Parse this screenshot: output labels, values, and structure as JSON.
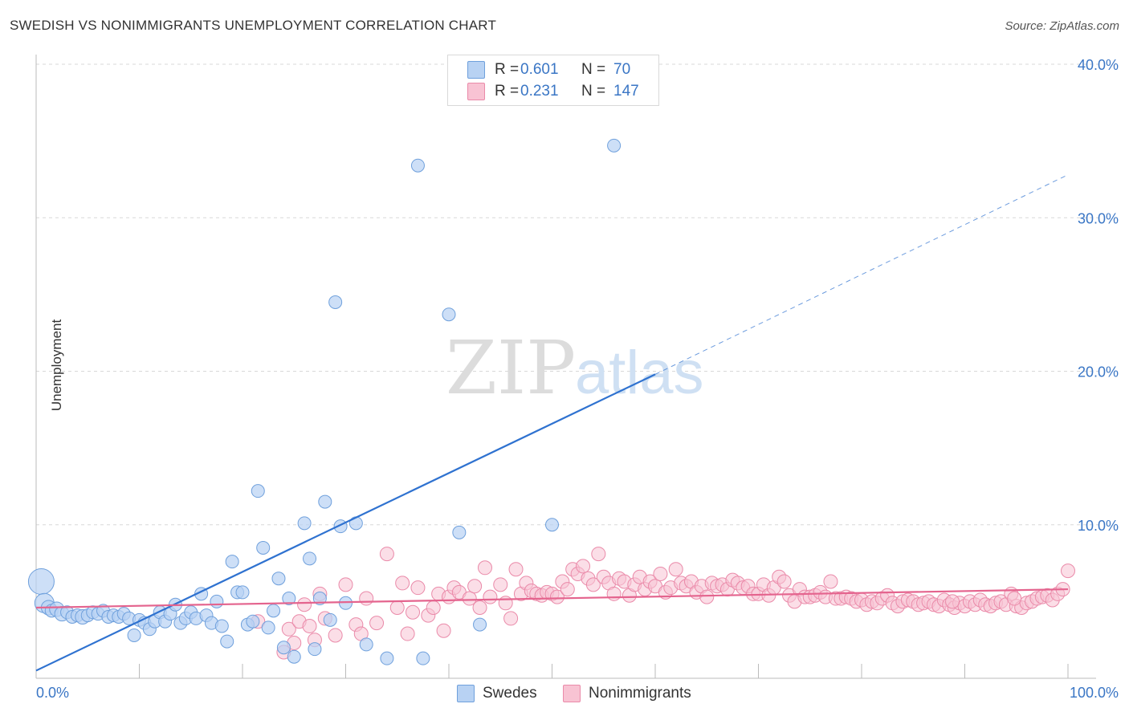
{
  "title": "SWEDISH VS NONIMMIGRANTS UNEMPLOYMENT CORRELATION CHART",
  "source": "Source: ZipAtlas.com",
  "watermark": {
    "zip": "ZIP",
    "atlas": "atlas"
  },
  "legend": {
    "rows": [
      {
        "r_label": "R =",
        "r_value": "0.601",
        "n_label": "N =",
        "n_value": "70",
        "color": "#b8d2f3"
      },
      {
        "r_label": "R =",
        "r_value": "0.231",
        "n_label": "N =",
        "n_value": "147",
        "color": "#f8c3d3"
      }
    ]
  },
  "bottom_legend": {
    "swedes": "Swedes",
    "nonimmigrants": "Nonimmigrants"
  },
  "colors": {
    "swedes_fill": "#b8d2f3",
    "swedes_stroke": "#6fa0dc",
    "swedes_line": "#2f72d0",
    "non_fill": "#f8c3d3",
    "non_stroke": "#ea8aa9",
    "non_line": "#e4648e",
    "tick_text": "#3a76c5",
    "grid": "#d8d8d8"
  },
  "chart_data": {
    "type": "scatter",
    "title": "SWEDISH VS NONIMMIGRANTS UNEMPLOYMENT CORRELATION CHART",
    "xlabel": "",
    "ylabel": "Unemployment",
    "xlim": [
      0,
      100
    ],
    "ylim": [
      0,
      40
    ],
    "x_tick_labels": [
      "0.0%",
      "100.0%"
    ],
    "y_ticks": [
      10,
      20,
      30,
      40
    ],
    "y_tick_labels": [
      "10.0%",
      "20.0%",
      "30.0%",
      "40.0%"
    ],
    "grid": true,
    "series": [
      {
        "name": "Swedes",
        "r": 0.601,
        "n": 70,
        "trend": {
          "x0": 0,
          "y0": 0.5,
          "x1": 60,
          "y1": 19.8,
          "dash_x1": 100,
          "dash_y1": 32.8
        },
        "points": [
          [
            0.5,
            6.3,
            15
          ],
          [
            0.8,
            4.9,
            11
          ],
          [
            1.2,
            4.6,
            8
          ],
          [
            1.5,
            4.4,
            7
          ],
          [
            2.0,
            4.5,
            8
          ],
          [
            2.5,
            4.2,
            8
          ],
          [
            3.0,
            4.3,
            7
          ],
          [
            3.5,
            4.0,
            7
          ],
          [
            4.0,
            4.1,
            7
          ],
          [
            4.5,
            4.0,
            8
          ],
          [
            5.0,
            4.1,
            7
          ],
          [
            5.5,
            4.3,
            7
          ],
          [
            6.0,
            4.2,
            7
          ],
          [
            6.5,
            4.4,
            7
          ],
          [
            7.0,
            4.0,
            7
          ],
          [
            7.5,
            4.1,
            7
          ],
          [
            8.0,
            4.0,
            7
          ],
          [
            8.5,
            4.2,
            7
          ],
          [
            9.0,
            3.9,
            7
          ],
          [
            9.5,
            2.8,
            7
          ],
          [
            10.0,
            3.8,
            7
          ],
          [
            10.5,
            3.6,
            7
          ],
          [
            11.0,
            3.2,
            7
          ],
          [
            11.5,
            3.7,
            7
          ],
          [
            12.0,
            4.3,
            7
          ],
          [
            12.5,
            3.7,
            7
          ],
          [
            13.0,
            4.2,
            7
          ],
          [
            13.5,
            4.8,
            7
          ],
          [
            14.0,
            3.6,
            7
          ],
          [
            14.5,
            3.9,
            7
          ],
          [
            15.0,
            4.3,
            7
          ],
          [
            15.5,
            3.9,
            7
          ],
          [
            16.0,
            5.5,
            7
          ],
          [
            16.5,
            4.1,
            7
          ],
          [
            17.0,
            3.6,
            7
          ],
          [
            17.5,
            5.0,
            7
          ],
          [
            18.0,
            3.4,
            7
          ],
          [
            18.5,
            2.4,
            7
          ],
          [
            19.0,
            7.6,
            7
          ],
          [
            19.5,
            5.6,
            7
          ],
          [
            20.0,
            5.6,
            7
          ],
          [
            20.5,
            3.5,
            7
          ],
          [
            21.0,
            3.7,
            7
          ],
          [
            21.5,
            12.2,
            7
          ],
          [
            22.0,
            8.5,
            7
          ],
          [
            22.5,
            3.3,
            7
          ],
          [
            23.0,
            4.4,
            7
          ],
          [
            23.5,
            6.5,
            7
          ],
          [
            24.0,
            2.0,
            7
          ],
          [
            24.5,
            5.2,
            7
          ],
          [
            25.0,
            1.4,
            7
          ],
          [
            26.0,
            10.1,
            7
          ],
          [
            26.5,
            7.8,
            7
          ],
          [
            27.0,
            1.9,
            7
          ],
          [
            27.5,
            5.2,
            7
          ],
          [
            28.0,
            11.5,
            7
          ],
          [
            28.5,
            3.8,
            7
          ],
          [
            29.0,
            24.5,
            7
          ],
          [
            29.5,
            9.9,
            7
          ],
          [
            30.0,
            4.9,
            7
          ],
          [
            31.0,
            10.1,
            7
          ],
          [
            32.0,
            2.2,
            7
          ],
          [
            34.0,
            1.3,
            7
          ],
          [
            37.0,
            33.4,
            7
          ],
          [
            37.5,
            1.3,
            7
          ],
          [
            40.0,
            23.7,
            7
          ],
          [
            41.0,
            9.5,
            7
          ],
          [
            43.0,
            3.5,
            7
          ],
          [
            50.0,
            10.0,
            7
          ],
          [
            56.0,
            34.7,
            7
          ]
        ]
      },
      {
        "name": "Nonimmigrants",
        "r": 0.231,
        "n": 147,
        "trend": {
          "x0": 0,
          "y0": 4.6,
          "x1": 100,
          "y1": 5.8
        },
        "points": [
          [
            21.5,
            3.7
          ],
          [
            24.0,
            1.7
          ],
          [
            24.5,
            3.2
          ],
          [
            25.0,
            2.3
          ],
          [
            25.5,
            3.7
          ],
          [
            26.0,
            4.8
          ],
          [
            26.5,
            3.4
          ],
          [
            27.0,
            2.5
          ],
          [
            27.5,
            5.5
          ],
          [
            28.0,
            3.9
          ],
          [
            29.0,
            2.8
          ],
          [
            30.0,
            6.1
          ],
          [
            31.0,
            3.5
          ],
          [
            31.5,
            2.9
          ],
          [
            32.0,
            5.2
          ],
          [
            33.0,
            3.6
          ],
          [
            34.0,
            8.1
          ],
          [
            35.0,
            4.6
          ],
          [
            35.5,
            6.2
          ],
          [
            36.0,
            2.9
          ],
          [
            36.5,
            4.3
          ],
          [
            37.0,
            5.9
          ],
          [
            38.0,
            4.1
          ],
          [
            38.5,
            4.6
          ],
          [
            39.0,
            5.5
          ],
          [
            39.5,
            3.1
          ],
          [
            40.0,
            5.3
          ],
          [
            40.5,
            5.9
          ],
          [
            41.0,
            5.6
          ],
          [
            42.0,
            5.2
          ],
          [
            42.5,
            6.0
          ],
          [
            43.0,
            4.6
          ],
          [
            43.5,
            7.2
          ],
          [
            44.0,
            5.3
          ],
          [
            45.0,
            6.1
          ],
          [
            45.5,
            4.9
          ],
          [
            46.0,
            3.9
          ],
          [
            46.5,
            7.1
          ],
          [
            47.0,
            5.5
          ],
          [
            47.5,
            6.2
          ],
          [
            48.0,
            5.7
          ],
          [
            48.5,
            5.5
          ],
          [
            49.0,
            5.4
          ],
          [
            49.5,
            5.6
          ],
          [
            50.0,
            5.5
          ],
          [
            50.5,
            5.3
          ],
          [
            51.0,
            6.3
          ],
          [
            51.5,
            5.8
          ],
          [
            52.0,
            7.1
          ],
          [
            52.5,
            6.8
          ],
          [
            53.0,
            7.3
          ],
          [
            53.5,
            6.5
          ],
          [
            54.0,
            6.1
          ],
          [
            54.5,
            8.1
          ],
          [
            55.0,
            6.6
          ],
          [
            55.5,
            6.2
          ],
          [
            56.0,
            5.5
          ],
          [
            56.5,
            6.5
          ],
          [
            57.0,
            6.3
          ],
          [
            57.5,
            5.4
          ],
          [
            58.0,
            6.1
          ],
          [
            58.5,
            6.6
          ],
          [
            59.0,
            5.8
          ],
          [
            59.5,
            6.3
          ],
          [
            60.0,
            6.0
          ],
          [
            60.5,
            6.8
          ],
          [
            61.0,
            5.6
          ],
          [
            61.5,
            5.9
          ],
          [
            62.0,
            7.1
          ],
          [
            62.5,
            6.2
          ],
          [
            63.0,
            6.0
          ],
          [
            63.5,
            6.3
          ],
          [
            64.0,
            5.6
          ],
          [
            64.5,
            6.0
          ],
          [
            65.0,
            5.3
          ],
          [
            65.5,
            6.2
          ],
          [
            66.0,
            6.0
          ],
          [
            66.5,
            6.1
          ],
          [
            67.0,
            5.8
          ],
          [
            67.5,
            6.4
          ],
          [
            68.0,
            6.2
          ],
          [
            68.5,
            5.9
          ],
          [
            69.0,
            6.0
          ],
          [
            69.5,
            5.5
          ],
          [
            70.0,
            5.5
          ],
          [
            70.5,
            6.1
          ],
          [
            71.0,
            5.4
          ],
          [
            71.5,
            5.9
          ],
          [
            72.0,
            6.6
          ],
          [
            72.5,
            6.3
          ],
          [
            73.0,
            5.4
          ],
          [
            73.5,
            5.0
          ],
          [
            74.0,
            5.8
          ],
          [
            74.5,
            5.3
          ],
          [
            75.0,
            5.3
          ],
          [
            75.5,
            5.4
          ],
          [
            76.0,
            5.6
          ],
          [
            76.5,
            5.3
          ],
          [
            77.0,
            6.3
          ],
          [
            77.5,
            5.2
          ],
          [
            78.0,
            5.2
          ],
          [
            78.5,
            5.3
          ],
          [
            79.0,
            5.2
          ],
          [
            79.5,
            5.0
          ],
          [
            80.0,
            5.1
          ],
          [
            80.5,
            4.8
          ],
          [
            81.0,
            5.0
          ],
          [
            81.5,
            4.9
          ],
          [
            82.0,
            5.2
          ],
          [
            82.5,
            5.4
          ],
          [
            83.0,
            4.9
          ],
          [
            83.5,
            4.7
          ],
          [
            84.0,
            5.0
          ],
          [
            84.5,
            5.1
          ],
          [
            85.0,
            5.0
          ],
          [
            85.5,
            4.8
          ],
          [
            86.0,
            4.9
          ],
          [
            86.5,
            5.0
          ],
          [
            87.0,
            4.8
          ],
          [
            87.5,
            4.7
          ],
          [
            88.0,
            5.1
          ],
          [
            88.5,
            4.8
          ],
          [
            89.0,
            4.6
          ],
          [
            89.5,
            4.9
          ],
          [
            90.0,
            4.7
          ],
          [
            90.5,
            5.0
          ],
          [
            91.0,
            4.8
          ],
          [
            91.5,
            5.1
          ],
          [
            92.0,
            4.8
          ],
          [
            92.5,
            4.7
          ],
          [
            93.0,
            4.9
          ],
          [
            93.5,
            5.0
          ],
          [
            94.0,
            4.8
          ],
          [
            94.5,
            5.5
          ],
          [
            95.0,
            4.7
          ],
          [
            95.5,
            4.6
          ],
          [
            96.0,
            4.9
          ],
          [
            96.5,
            5.0
          ],
          [
            97.0,
            5.2
          ],
          [
            97.5,
            5.3
          ],
          [
            98.0,
            5.4
          ],
          [
            98.5,
            5.1
          ],
          [
            99.0,
            5.5
          ],
          [
            99.5,
            5.8
          ],
          [
            100.0,
            7.0
          ],
          [
            94.8,
            5.2
          ],
          [
            88.8,
            5.0
          ]
        ]
      }
    ]
  }
}
